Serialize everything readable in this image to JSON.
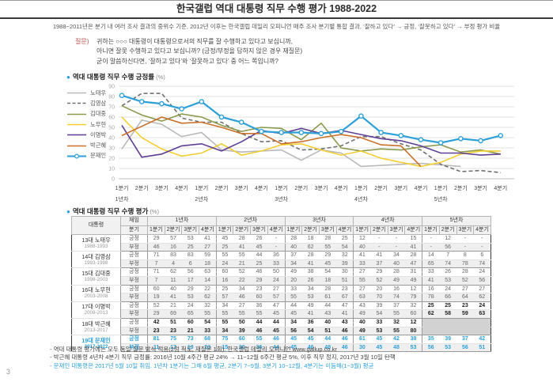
{
  "header": {
    "title": "한국갤럽 역대 대통령 직무 수행 평가 1988-2022"
  },
  "subtitle": "1988~2011년은 분기 내 여러 조사 결과의 중위수 기준, 2012년 이후는 한국갤럽 데일리 오피니언 매주 조사 분기별 통합 결과, ‘잘하고 있다’ → 긍정, ‘잘못하고 있다’ → 부정 평가 비율",
  "question": {
    "label": "질문)",
    "lines": [
      "귀하는 ○○○ 대통령이 대통령으로서의 직무를 잘 수행하고 있다고 보십니까,",
      "아니면 잘못 수행하고 있다고 보십니까? (긍정/부정을 답하지 않은 경우 재질문)",
      "굳이 말씀하신다면, ‘잘하고 있다’와 ‘잘못하고 있다’ 중 어느 쪽입니까?"
    ]
  },
  "chart": {
    "title": "역대 대통령 직무 수행 긍정률",
    "unit": "(%)"
  },
  "chart_data": {
    "type": "line",
    "ylim": [
      0,
      90
    ],
    "yticks": [
      0,
      10,
      20,
      30,
      40,
      50,
      60,
      70,
      80,
      90
    ],
    "quarter_labels": [
      "1분기",
      "2분기",
      "3분기",
      "4분기"
    ],
    "year_labels": [
      "1년차",
      "2년차",
      "3년차",
      "4년차",
      "5년차"
    ],
    "grid": true,
    "legend_position": "left",
    "series": [
      {
        "name": "노태우",
        "color": "#b9b9b9",
        "dash": false,
        "marker": false,
        "values": [
          29,
          57,
          53,
          41,
          45,
          28,
          26,
          null,
          28,
          18,
          28,
          25,
          12,
          null,
          null,
          15,
          null,
          12,
          null,
          null
        ]
      },
      {
        "name": "김영삼",
        "color": "#707070",
        "dash": true,
        "marker": false,
        "values": [
          71,
          83,
          83,
          59,
          55,
          55,
          44,
          36,
          37,
          28,
          29,
          32,
          41,
          41,
          34,
          28,
          14,
          7,
          8,
          6
        ]
      },
      {
        "name": "김대중",
        "color": "#8a9a4e",
        "dash": false,
        "marker": false,
        "values": [
          71,
          62,
          56,
          63,
          60,
          52,
          46,
          50,
          49,
          38,
          54,
          30,
          27,
          29,
          28,
          31,
          33,
          26,
          28,
          24
        ]
      },
      {
        "name": "노무현",
        "color": "#f3cf2f",
        "dash": false,
        "marker": false,
        "values": [
          60,
          40,
          29,
          22,
          25,
          34,
          23,
          27,
          33,
          34,
          28,
          23,
          27,
          20,
          16,
          12,
          16,
          24,
          27,
          27
        ]
      },
      {
        "name": "이명박",
        "color": "#5f3f94",
        "dash": false,
        "marker": false,
        "values": [
          52,
          21,
          24,
          32,
          34,
          27,
          36,
          47,
          44,
          49,
          44,
          47,
          43,
          39,
          37,
          32,
          25,
          25,
          23,
          24
        ]
      },
      {
        "name": "박근혜",
        "color": "#c9702b",
        "dash": false,
        "marker": false,
        "values": [
          42,
          51,
          60,
          54,
          55,
          50,
          44,
          44,
          34,
          36,
          40,
          43,
          40,
          33,
          32,
          12,
          null,
          null,
          null,
          null
        ]
      },
      {
        "name": "문재인",
        "color": "#2da0d8",
        "dash": false,
        "marker": true,
        "values": [
          81,
          75,
          73,
          68,
          75,
          60,
          55,
          46,
          45,
          45,
          44,
          46,
          61,
          45,
          42,
          38,
          35,
          39,
          37,
          42
        ]
      }
    ]
  },
  "table": {
    "title": "역대 대통령 직무 수행 평가",
    "unit": "(%)",
    "col_president": "대통령",
    "col_term_top": "재임",
    "col_term_bottom": "분기",
    "years": [
      "1년차",
      "2년차",
      "3년차",
      "4년차",
      "5년차"
    ],
    "quarters": [
      "1분기",
      "2분기",
      "3분기",
      "4분기"
    ],
    "pos_label": "긍정",
    "neg_label": "부정",
    "rows": [
      {
        "name": "13대 노태우",
        "term": "1988-1993",
        "highlight": false,
        "bold_from": null,
        "gray_null": false,
        "pos": [
          29,
          57,
          53,
          41,
          45,
          28,
          26,
          null,
          28,
          18,
          28,
          25,
          12,
          null,
          null,
          15,
          null,
          12,
          null,
          null
        ],
        "neg": [
          46,
          16,
          25,
          27,
          25,
          41,
          45,
          null,
          40,
          62,
          55,
          54,
          40,
          null,
          null,
          41,
          null,
          56,
          null,
          null
        ]
      },
      {
        "name": "14대 김영삼",
        "term": "1993-1998",
        "highlight": false,
        "bold_from": null,
        "gray_null": false,
        "pos": [
          71,
          83,
          83,
          59,
          55,
          55,
          44,
          36,
          37,
          28,
          29,
          32,
          41,
          41,
          34,
          28,
          14,
          7,
          8,
          6
        ],
        "neg": [
          7,
          4,
          6,
          18,
          24,
          21,
          25,
          33,
          34,
          41,
          45,
          39,
          33,
          37,
          40,
          47,
          65,
          74,
          78,
          74
        ]
      },
      {
        "name": "15대 김대중",
        "term": "1998-2003",
        "highlight": false,
        "bold_from": null,
        "gray_null": false,
        "pos": [
          71,
          62,
          56,
          63,
          60,
          52,
          46,
          50,
          49,
          38,
          54,
          30,
          27,
          29,
          28,
          31,
          33,
          26,
          28,
          24
        ],
        "neg": [
          7,
          11,
          17,
          14,
          16,
          22,
          29,
          24,
          20,
          26,
          18,
          51,
          55,
          52,
          49,
          49,
          41,
          53,
          52,
          56
        ]
      },
      {
        "name": "16대 노무현",
        "term": "2003-2008",
        "highlight": false,
        "bold_from": null,
        "gray_null": false,
        "pos": [
          60,
          40,
          29,
          22,
          25,
          34,
          23,
          27,
          33,
          34,
          28,
          23,
          27,
          20,
          16,
          12,
          16,
          24,
          27,
          27
        ],
        "neg": [
          19,
          41,
          53,
          62,
          57,
          46,
          60,
          57,
          55,
          53,
          61,
          67,
          63,
          70,
          74,
          79,
          78,
          66,
          64,
          62
        ]
      },
      {
        "name": "17대 이명박",
        "term": "2008-2013",
        "highlight": false,
        "bold_from": 16,
        "gray_null": false,
        "pos": [
          52,
          21,
          24,
          32,
          34,
          27,
          36,
          47,
          44,
          49,
          44,
          47,
          43,
          39,
          37,
          32,
          25,
          25,
          23,
          24
        ],
        "neg": [
          29,
          69,
          65,
          55,
          55,
          55,
          55,
          45,
          45,
          41,
          43,
          41,
          49,
          54,
          55,
          60,
          62,
          58,
          59,
          63
        ]
      },
      {
        "name": "18대 박근혜",
        "term": "2013-2017",
        "highlight": false,
        "bold_from": 0,
        "gray_null": true,
        "pos": [
          42,
          51,
          60,
          54,
          55,
          50,
          44,
          44,
          34,
          36,
          40,
          43,
          40,
          33,
          32,
          12,
          null,
          null,
          null,
          null
        ],
        "neg": [
          23,
          23,
          21,
          33,
          34,
          39,
          46,
          45,
          56,
          54,
          51,
          46,
          49,
          53,
          55,
          80,
          null,
          null,
          null,
          null
        ]
      },
      {
        "name": "19대 문재인",
        "term": "2017-2022",
        "highlight": true,
        "bold_from": 0,
        "gray_null": false,
        "pos": [
          81,
          75,
          73,
          68,
          75,
          60,
          55,
          46,
          45,
          45,
          44,
          46,
          61,
          45,
          42,
          38,
          35,
          39,
          37,
          42
        ],
        "neg": [
          11,
          17,
          19,
          23,
          15,
          30,
          36,
          44,
          45,
          46,
          48,
          46,
          30,
          45,
          48,
          53,
          56,
          53,
          56,
          51
        ]
      }
    ]
  },
  "footnotes": [
    {
      "text": "- 역대 대통령 평가에는 모두 동일 질문 방식 적용(2점 척도, 재질문 1회). 한국갤럽 데일리 오피니언 www.gallup.co.kr",
      "highlight": false
    },
    {
      "text": "- 박근혜 대통령 4년차 4분기 직무 긍정률: 2016년 10월 4주간 평균 24% → 11~12월 6주간 평균 5%, 이후 직무 정지, 2017년 3월 10일 탄핵",
      "highlight": false
    },
    {
      "text": "- 문재인 대통령은 2017년 5월 10일 취임. 1년차 1분기는 그해 6월 평균, 2분기 7~9월, 3분기 10~12월, 4분기는 이듬해(1~3월) 평균",
      "highlight": true
    }
  ],
  "page_number": "3"
}
